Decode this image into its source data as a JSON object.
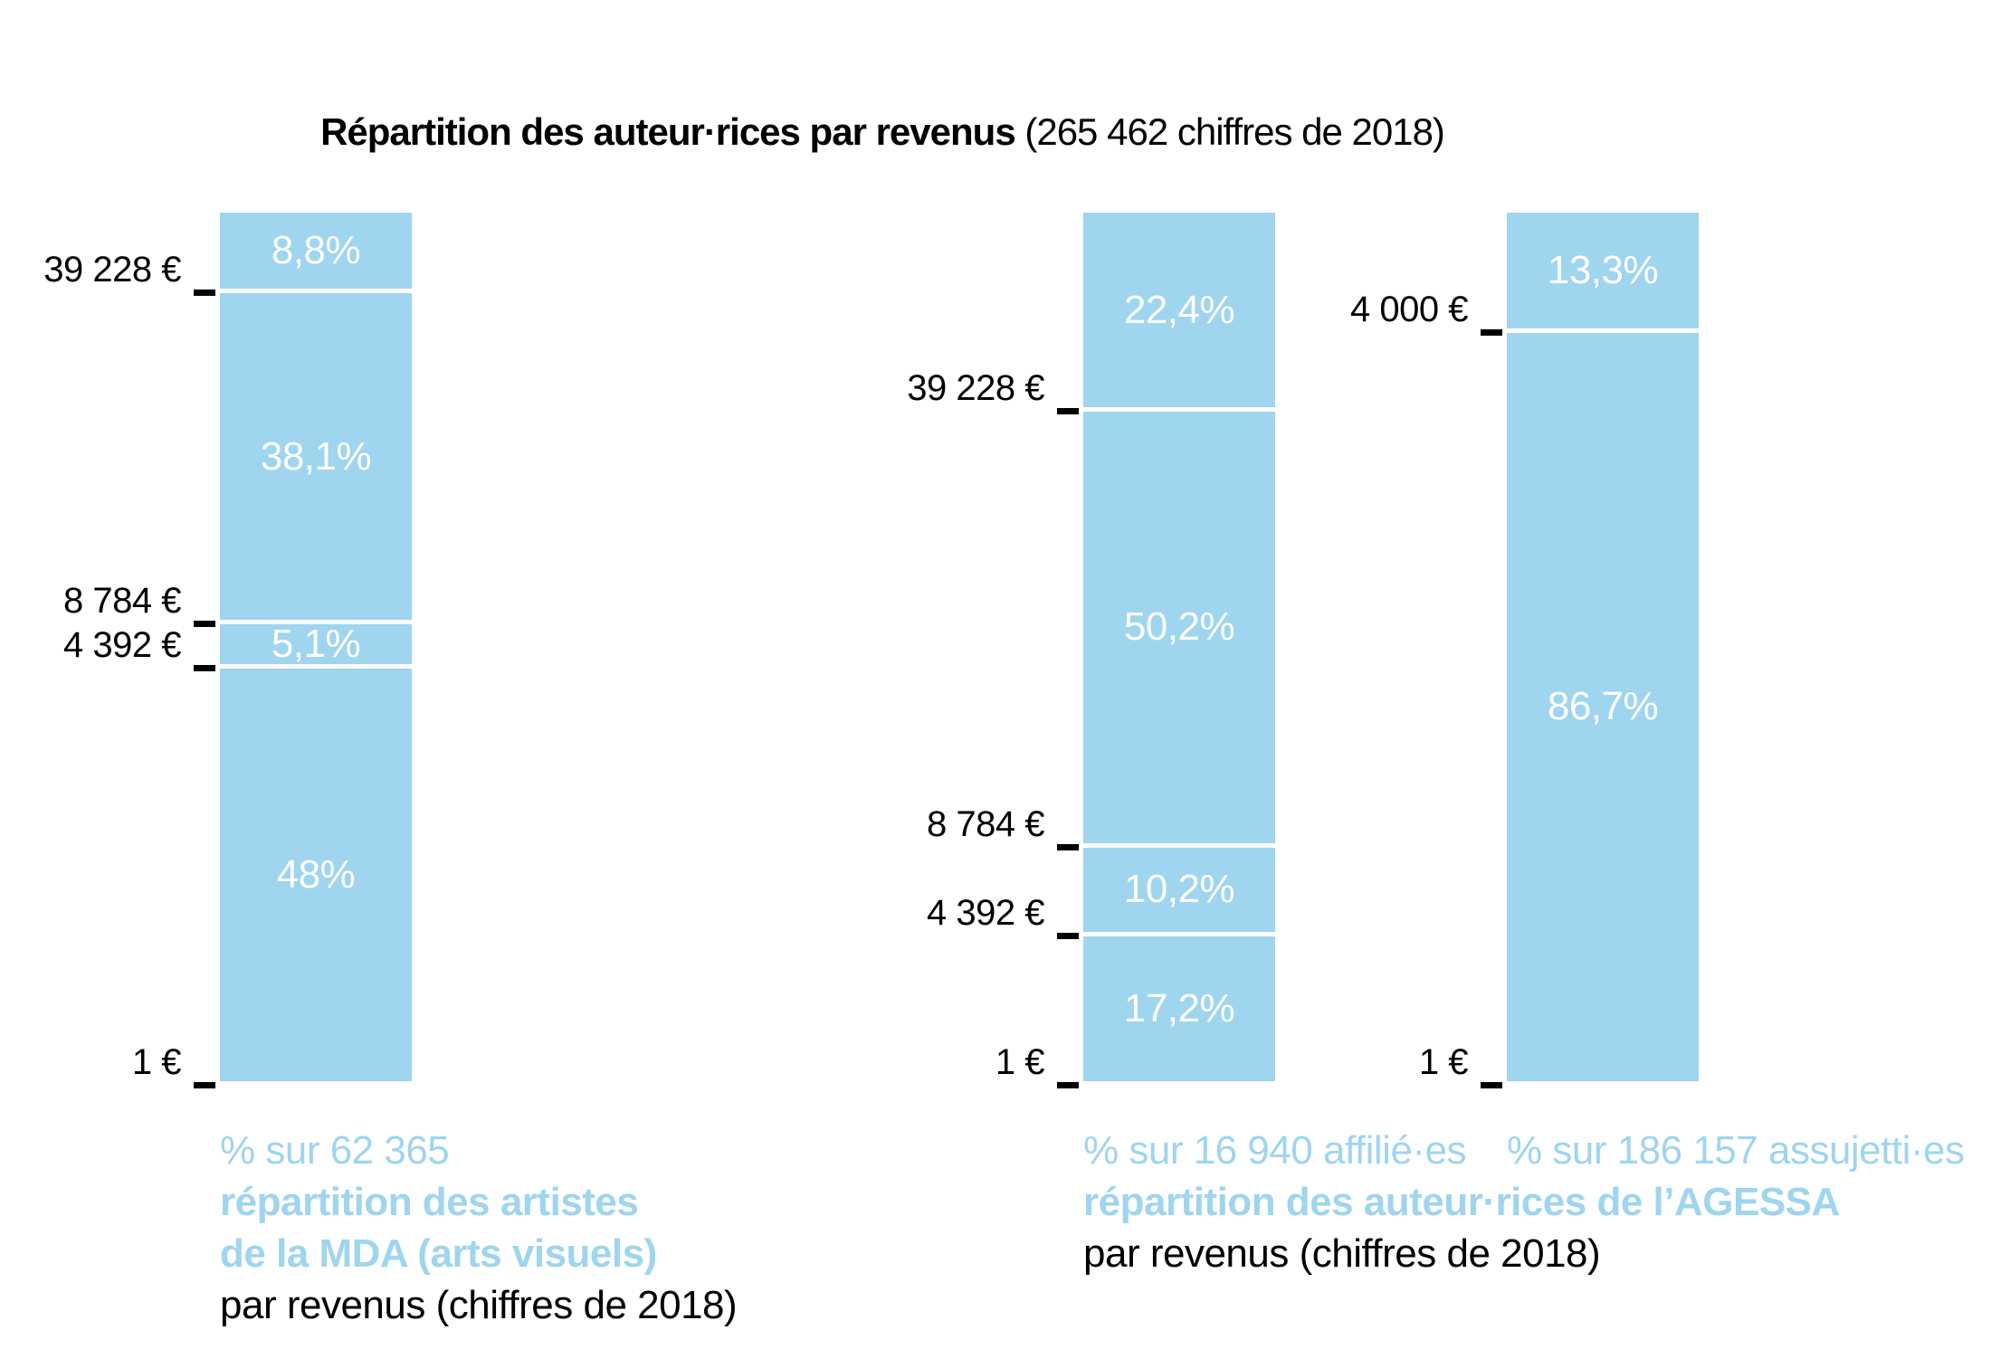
{
  "title": {
    "bold": "Répartition des auteur·rices par revenus",
    "suffix": " (265 462 chiffres de 2018)"
  },
  "colors": {
    "bar_blue": "#9FD5EF",
    "caption_blue": "#9FD5EF",
    "segment_label_white": "#FFFFFF",
    "text_black": "#000000"
  },
  "chart_data": [
    {
      "type": "bar",
      "stacked": true,
      "orientation": "vertical",
      "unit": "%",
      "segments": [
        {
          "label": "8,8%",
          "value": 8.8
        },
        {
          "label": "38,1%",
          "value": 38.1
        },
        {
          "label": "5,1%",
          "value": 5.1
        },
        {
          "label": "48%",
          "value": 48
        }
      ],
      "ticks": [
        {
          "label": "39 228 €",
          "after_segment": 1
        },
        {
          "label": "8 784 €",
          "after_segment": 2
        },
        {
          "label": "4 392 €",
          "after_segment": 3
        },
        {
          "label": "1 €",
          "after_segment": 4
        }
      ],
      "caption": [
        {
          "text": "% sur 62 365",
          "style": "blue"
        },
        {
          "text": "répartition des artistes",
          "style": "blue-bold"
        },
        {
          "text": "de la MDA (arts visuels)",
          "style": "blue-bold"
        },
        {
          "text": "par revenus (chiffres de 2018)",
          "style": "black"
        }
      ]
    },
    {
      "type": "bar",
      "stacked": true,
      "orientation": "vertical",
      "unit": "%",
      "segments": [
        {
          "label": "22,4%",
          "value": 22.4
        },
        {
          "label": "50,2%",
          "value": 50.2
        },
        {
          "label": "10,2%",
          "value": 10.2
        },
        {
          "label": "17,2%",
          "value": 17.2
        }
      ],
      "ticks": [
        {
          "label": "39 228 €",
          "after_segment": 1
        },
        {
          "label": "8 784 €",
          "after_segment": 2
        },
        {
          "label": "4 392 €",
          "after_segment": 3
        },
        {
          "label": "1 €",
          "after_segment": 4
        }
      ],
      "caption": [
        {
          "text": "% sur 16 940 affilié·es",
          "style": "blue"
        },
        {
          "text": "répartition des auteur·rices de l’AGESSA",
          "style": "blue-bold"
        },
        {
          "text": "par revenus (chiffres de 2018)",
          "style": "black"
        }
      ]
    },
    {
      "type": "bar",
      "stacked": true,
      "orientation": "vertical",
      "unit": "%",
      "segments": [
        {
          "label": "13,3%",
          "value": 13.3
        },
        {
          "label": "86,7%",
          "value": 86.7
        }
      ],
      "ticks": [
        {
          "label": "4 000 €",
          "after_segment": 1
        },
        {
          "label": "1 €",
          "after_segment": 2
        }
      ],
      "caption": [
        {
          "text": "% sur 186 157 assujetti·es",
          "style": "blue"
        }
      ]
    }
  ]
}
